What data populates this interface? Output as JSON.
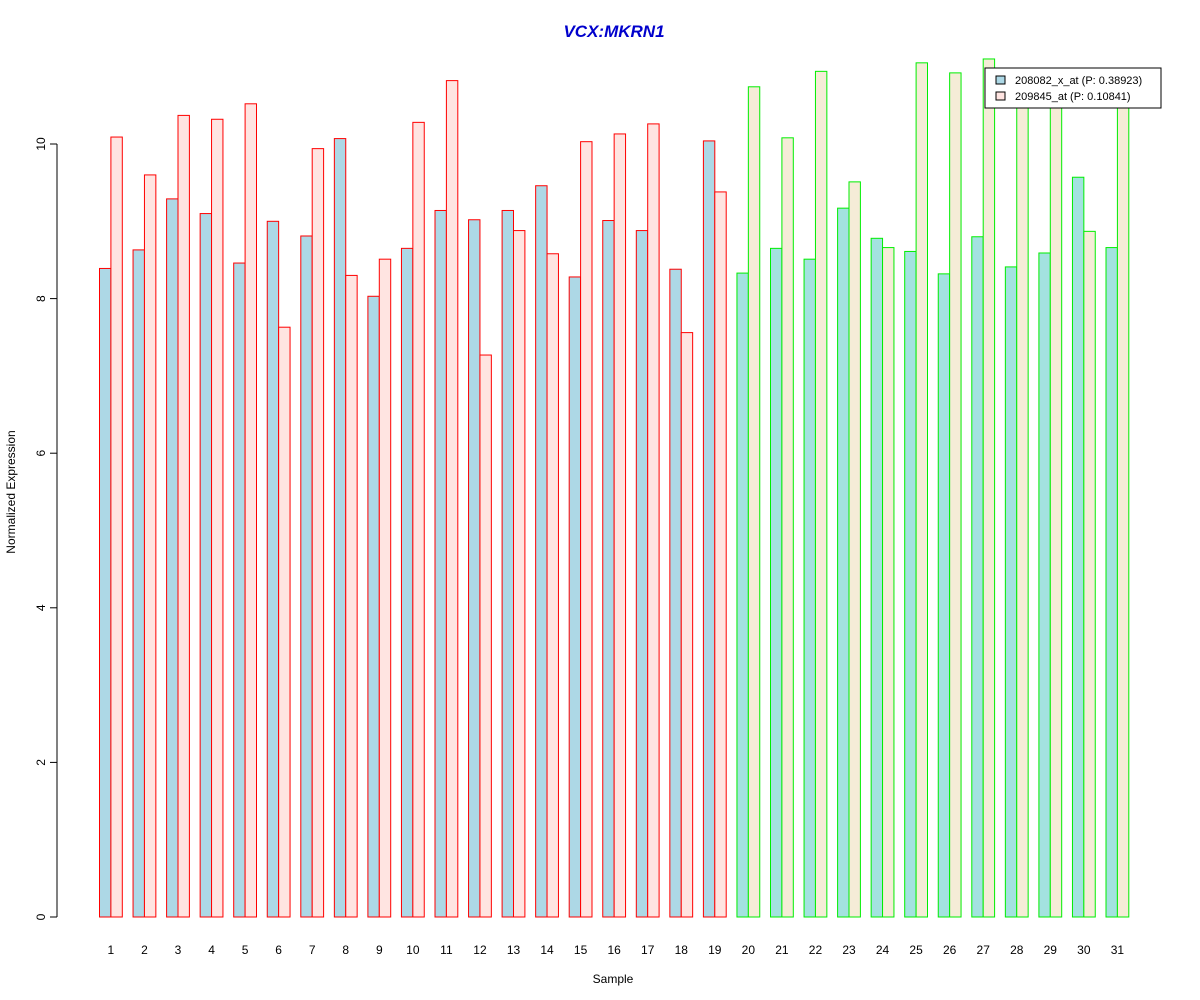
{
  "chart_data": {
    "type": "bar",
    "title": "VCX:MKRN1",
    "xlabel": "Sample",
    "ylabel": "Normalized Expression",
    "ylim": [
      0,
      11.2
    ],
    "y_ticks": [
      0,
      2,
      4,
      6,
      8,
      10
    ],
    "grid": false,
    "legend_position": "top-right",
    "categories": [
      "1",
      "2",
      "3",
      "4",
      "5",
      "6",
      "7",
      "8",
      "9",
      "10",
      "11",
      "12",
      "13",
      "14",
      "15",
      "16",
      "17",
      "18",
      "19",
      "20",
      "21",
      "22",
      "23",
      "24",
      "25",
      "26",
      "27",
      "28",
      "29",
      "30",
      "31"
    ],
    "group_border_colors": [
      "#ff0000",
      "#ff0000",
      "#ff0000",
      "#ff0000",
      "#ff0000",
      "#ff0000",
      "#ff0000",
      "#ff0000",
      "#ff0000",
      "#ff0000",
      "#ff0000",
      "#ff0000",
      "#ff0000",
      "#ff0000",
      "#ff0000",
      "#ff0000",
      "#ff0000",
      "#ff0000",
      "#ff0000",
      "#00ee00",
      "#00ee00",
      "#00ee00",
      "#00ee00",
      "#00ee00",
      "#00ee00",
      "#00ee00",
      "#00ee00",
      "#00ee00",
      "#00ee00",
      "#00ee00",
      "#00ee00"
    ],
    "series": [
      {
        "name": "208082_x_at (P: 0.38923)",
        "values": [
          8.39,
          8.63,
          9.29,
          9.1,
          8.46,
          9.0,
          8.81,
          10.07,
          8.03,
          8.65,
          9.14,
          9.02,
          9.14,
          9.46,
          8.28,
          9.01,
          8.88,
          8.38,
          10.04,
          8.33,
          8.65,
          8.51,
          9.17,
          8.78,
          8.61,
          8.32,
          8.8,
          8.41,
          8.59,
          9.57,
          8.66
        ],
        "colors": [
          "#add8e6",
          "#add8e6",
          "#add8e6",
          "#add8e6",
          "#add8e6",
          "#add8e6",
          "#add8e6",
          "#add8e6",
          "#add8e6",
          "#add8e6",
          "#add8e6",
          "#add8e6",
          "#add8e6",
          "#add8e6",
          "#add8e6",
          "#add8e6",
          "#add8e6",
          "#add8e6",
          "#add8e6",
          "#a3e2e0",
          "#a3e2e0",
          "#a3e2e0",
          "#a3e2e0",
          "#a3e2e0",
          "#a3e2e0",
          "#a3e2e0",
          "#a3e2e0",
          "#a3e2e0",
          "#a3e2e0",
          "#a3e2e0",
          "#a3e2e0"
        ]
      },
      {
        "name": "209845_at (P: 0.10841)",
        "values": [
          10.09,
          9.6,
          10.37,
          10.32,
          10.52,
          7.63,
          9.94,
          8.3,
          8.51,
          10.28,
          10.82,
          7.27,
          8.88,
          8.58,
          10.03,
          10.13,
          10.26,
          7.56,
          9.38,
          10.74,
          10.08,
          10.94,
          9.51,
          8.66,
          11.05,
          10.92,
          11.1,
          10.8,
          10.8,
          8.87,
          10.6
        ],
        "colors": [
          "#ffe4e1",
          "#ffe4e1",
          "#ffe4e1",
          "#ffe4e1",
          "#ffe4e1",
          "#ffe4e1",
          "#ffe4e1",
          "#ffe4e1",
          "#ffe4e1",
          "#ffe4e1",
          "#ffe4e1",
          "#ffe4e1",
          "#ffe4e1",
          "#ffe4e1",
          "#ffe4e1",
          "#ffe4e1",
          "#ffe4e1",
          "#ffe4e1",
          "#ffe4e1",
          "#f5ecd7",
          "#f5ecd7",
          "#f5ecd7",
          "#f5ecd7",
          "#f5ecd7",
          "#f5ecd7",
          "#f5ecd7",
          "#f5ecd7",
          "#f5ecd7",
          "#f5ecd7",
          "#f5ecd7",
          "#f5ecd7"
        ]
      }
    ],
    "legend_swatch_colors": [
      "#add8e6",
      "#ffe4e1"
    ],
    "title_color": "#0000cc"
  }
}
